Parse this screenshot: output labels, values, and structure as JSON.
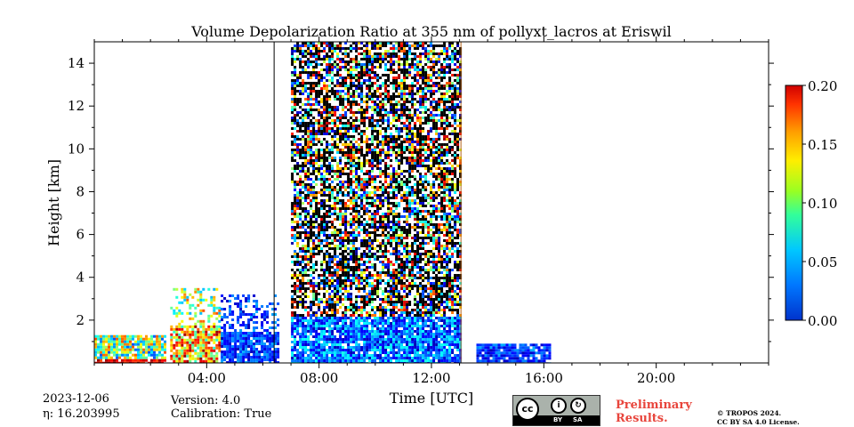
{
  "chart_data": {
    "type": "heatmap",
    "title": "Volume Depolarization Ratio at 355 nm of pollyxt_lacros at Eriswil",
    "xlabel": "Time [UTC]",
    "ylabel": "Height [km]",
    "xlim_hours": [
      0,
      24
    ],
    "ylim_km": [
      0,
      15
    ],
    "x_ticks_hours": [
      4,
      8,
      12,
      16,
      20
    ],
    "x_tick_labels": [
      "04:00",
      "08:00",
      "12:00",
      "16:00",
      "20:00"
    ],
    "y_ticks": [
      2,
      4,
      6,
      8,
      10,
      12,
      14
    ],
    "y_tick_labels": [
      "2",
      "4",
      "6",
      "8",
      "10",
      "12",
      "14"
    ],
    "colorbar": {
      "min": 0.0,
      "max": 0.2,
      "ticks": [
        0.0,
        0.05,
        0.1,
        0.15,
        0.2
      ],
      "tick_labels": [
        "0.00",
        "0.05",
        "0.10",
        "0.15",
        "0.20"
      ],
      "colormap": "jet"
    },
    "observation_gaps_hours": [
      [
        6.5,
        7.0
      ],
      [
        13.6,
        13.6
      ]
    ],
    "regions": [
      {
        "start_h": 0.0,
        "end_h": 2.5,
        "max_height_km": 1.3,
        "depol": "high_mixed"
      },
      {
        "start_h": 2.7,
        "end_h": 4.5,
        "max_height_km": 3.5,
        "depol": "mixed"
      },
      {
        "start_h": 4.5,
        "end_h": 6.5,
        "max_height_km": 3.2,
        "depol": "low"
      },
      {
        "start_h": 7.0,
        "end_h": 13.0,
        "max_height_km": 15.0,
        "depol": "noise_upper_low_below_2km"
      },
      {
        "start_h": 13.6,
        "end_h": 16.2,
        "max_height_km": 0.9,
        "depol": "low"
      }
    ]
  },
  "footer": {
    "date": "2023-12-06",
    "eta": "η: 16.203995",
    "version": "Version: 4.0",
    "calibration": "Calibration: True",
    "preliminary": "Preliminary",
    "results": "Results.",
    "copyright": "© TROPOS 2024.",
    "license": "CC BY SA 4.0 License.",
    "cc_badge_by": "BY",
    "cc_badge_sa": "SA",
    "cc_text": "cc"
  }
}
